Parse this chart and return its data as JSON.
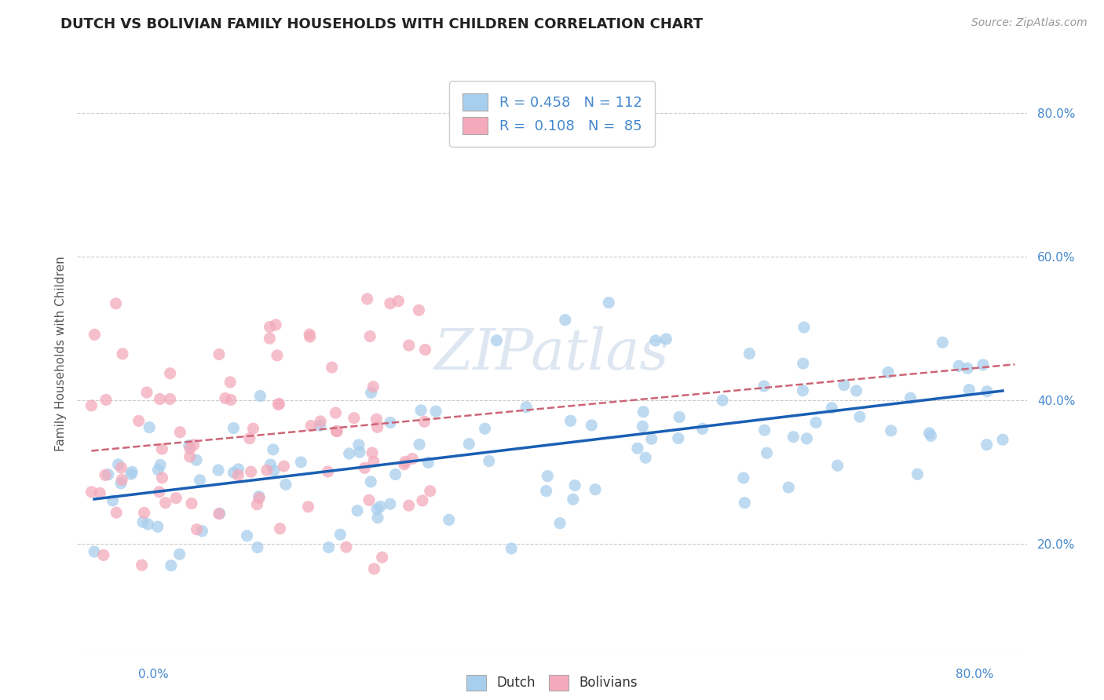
{
  "title": "DUTCH VS BOLIVIAN FAMILY HOUSEHOLDS WITH CHILDREN CORRELATION CHART",
  "source": "Source: ZipAtlas.com",
  "ylabel": "Family Households with Children",
  "xlim": [
    0.0,
    0.8
  ],
  "ylim": [
    0.05,
    0.88
  ],
  "yticks": [
    0.2,
    0.4,
    0.6,
    0.8
  ],
  "ytick_labels": [
    "20.0%",
    "40.0%",
    "60.0%",
    "80.0%"
  ],
  "dutch_R": 0.458,
  "dutch_N": 112,
  "bolivian_R": 0.108,
  "bolivian_N": 85,
  "dutch_color": "#A8CEED",
  "bolivian_color": "#F4AABB",
  "dutch_line_color": "#1A5FB4",
  "bolivian_line_color": "#CC6677",
  "background_color": "#FFFFFF",
  "grid_color": "#CCCCCC",
  "title_color": "#222222",
  "axis_label_color": "#4488CC",
  "legend_text_color": "#4488CC",
  "watermark_text": "ZIPatlas",
  "watermark_color": "#C8D8E8",
  "dutch_seed": 42,
  "bolivian_seed": 99
}
